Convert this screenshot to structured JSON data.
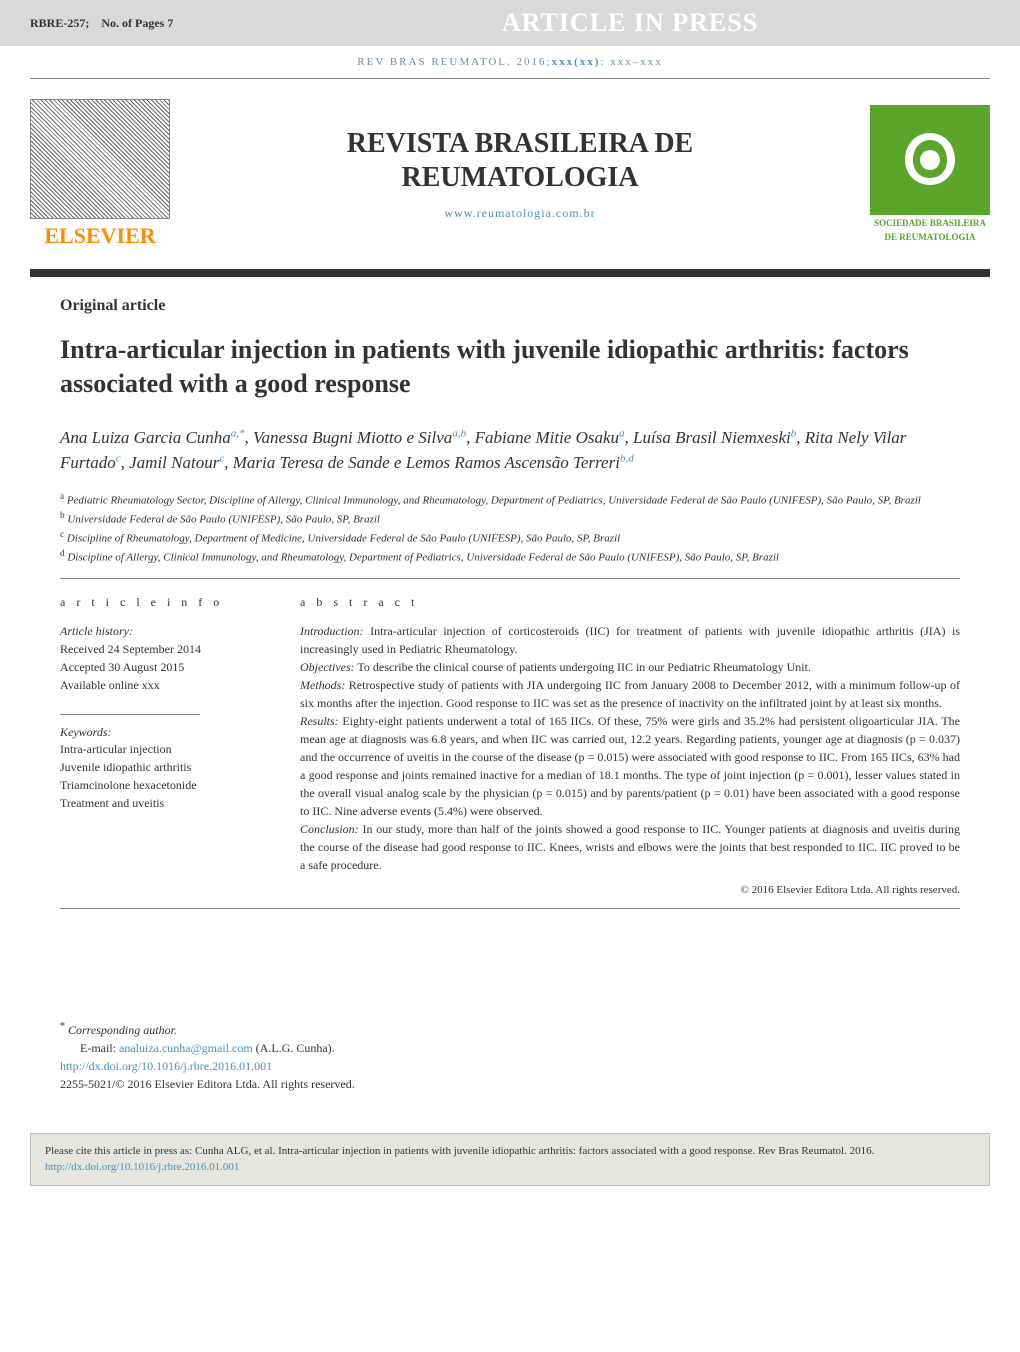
{
  "header": {
    "doc_id": "RBRE-257;",
    "pages_label": "No. of Pages 7",
    "banner": "ARTICLE IN PRESS"
  },
  "citation_line": {
    "prefix": "REV BRAS REUMATOL. 2016;",
    "vol": "xxx(xx)",
    "suffix": ": xxx–xxx"
  },
  "journal": {
    "title_line1": "REVISTA BRASILEIRA DE",
    "title_line2": "REUMATOLOGIA",
    "link": "www.reumatologia.com.br",
    "publisher_name": "ELSEVIER",
    "society_line1": "SOCIEDADE BRASILEIRA",
    "society_line2": "DE REUMATOLOGIA"
  },
  "colors": {
    "header_bg": "#d9d9d9",
    "banner_text": "#ffffff",
    "link": "#4a90c2",
    "elsevier_orange": "#ff8c00",
    "society_green": "#5aa62b",
    "thick_bar": "#333333",
    "citebox_bg": "#e6e6e0"
  },
  "article": {
    "type": "Original article",
    "title": "Intra-articular injection in patients with juvenile idiopathic arthritis: factors associated with a good response",
    "authors_html": "Ana Luiza Garcia Cunha<sup>a,*</sup>, Vanessa Bugni Miotto e Silva<sup>a,b</sup>, Fabiane Mitie Osaku<sup>a</sup>, Luísa Brasil Niemxeski<sup>b</sup>, Rita Nely Vilar Furtado<sup>c</sup>, Jamil Natour<sup>c</sup>, Maria Teresa de Sande e Lemos Ramos Ascensão Terreri<sup>b,d</sup>",
    "affiliations": [
      {
        "sup": "a",
        "text": "Pediatric Rheumatology Sector, Discipline of Allergy, Clinical Immunology, and Rheumatology, Department of Pediatrics, Universidade Federal de São Paulo (UNIFESP), São Paulo, SP, Brazil"
      },
      {
        "sup": "b",
        "text": "Universidade Federal de São Paulo (UNIFESP), São Paulo, SP, Brazil"
      },
      {
        "sup": "c",
        "text": "Discipline of Rheumatology, Department of Medicine, Universidade Federal de São Paulo (UNIFESP), São Paulo, SP, Brazil"
      },
      {
        "sup": "d",
        "text": "Discipline of Allergy, Clinical Immunology, and Rheumatology, Department of Pediatrics, Universidade Federal de São Paulo (UNIFESP), São Paulo, SP, Brazil"
      }
    ]
  },
  "info": {
    "heading": "a r t i c l e   i n f o",
    "history_label": "Article history:",
    "received": "Received 24 September 2014",
    "accepted": "Accepted 30 August 2015",
    "online": "Available online xxx",
    "keywords_label": "Keywords:",
    "keywords": [
      "Intra-articular injection",
      "Juvenile idiopathic arthritis",
      "Triamcinolone hexacetonide",
      "Treatment and uveitis"
    ]
  },
  "abstract": {
    "heading": "a b s t r a c t",
    "intro_label": "Introduction:",
    "intro": " Intra-articular injection of corticosteroids (IIC) for treatment of patients with juvenile idiopathic arthritis (JIA) is increasingly used in Pediatric Rheumatology.",
    "obj_label": "Objectives:",
    "obj": " To describe the clinical course of patients undergoing IIC in our Pediatric Rheumatology Unit.",
    "meth_label": "Methods:",
    "meth": " Retrospective study of patients with JIA undergoing IIC from January 2008 to December 2012, with a minimum follow-up of six months after the injection. Good response to IIC was set as the presence of inactivity on the infiltrated joint by at least six months.",
    "res_label": "Results:",
    "res": " Eighty-eight patients underwent a total of 165 IICs. Of these, 75% were girls and 35.2% had persistent oligoarticular JIA. The mean age at diagnosis was 6.8 years, and when IIC was carried out, 12.2 years. Regarding patients, younger age at diagnosis (p = 0.037) and the occurrence of uveitis in the course of the disease (p = 0.015) were associated with good response to IIC. From 165 IICs, 63% had a good response and joints remained inactive for a median of 18.1 months. The type of joint injection (p = 0.001), lesser values stated in the overall visual analog scale by the physician (p = 0.015) and by parents/patient (p = 0.01) have been associated with a good response to IIC. Nine adverse events (5.4%) were observed.",
    "conc_label": "Conclusion:",
    "conc": " In our study, more than half of the joints showed a good response to IIC. Younger patients at diagnosis and uveitis during the course of the disease had good response to IIC. Knees, wrists and elbows were the joints that best responded to IIC. IIC proved to be a safe procedure.",
    "copyright": "© 2016 Elsevier Editora Ltda. All rights reserved."
  },
  "footer": {
    "corr_label": "Corresponding author.",
    "email_label": "E-mail:",
    "email": "analuiza.cunha@gmail.com",
    "email_author": " (A.L.G. Cunha).",
    "doi": "http://dx.doi.org/10.1016/j.rbre.2016.01.001",
    "issn_line": "2255-5021/© 2016 Elsevier Editora Ltda. All rights reserved."
  },
  "citebox": {
    "text": "Please cite this article in press as: Cunha ALG, et al. Intra-articular injection in patients with juvenile idiopathic arthritis: factors associated with a good response. Rev Bras Reumatol. 2016. ",
    "link": "http://dx.doi.org/10.1016/j.rbre.2016.01.001"
  }
}
